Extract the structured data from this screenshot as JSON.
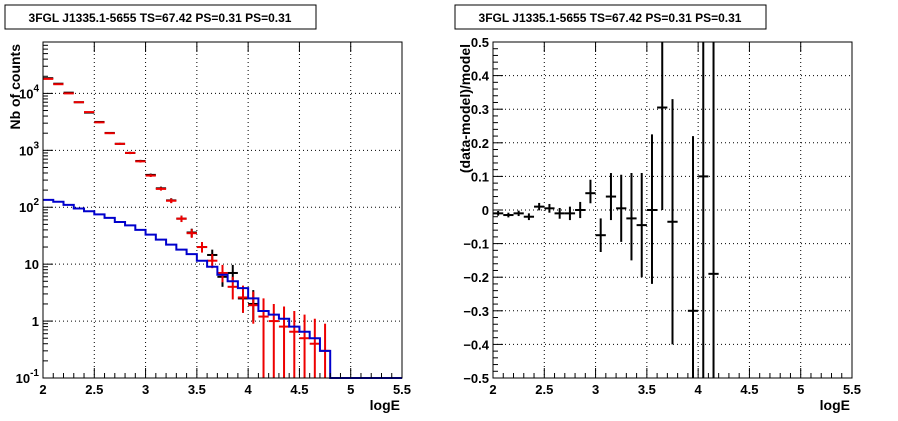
{
  "panels": {
    "left": {
      "title": "3FGL J1335.1-5655 TS=67.42 PS=0.31 PS=0.31",
      "xlabel": "logE",
      "ylabel": "Nb of counts"
    },
    "right": {
      "title": "3FGL J1335.1-5655 TS=67.42 PS=0.31 PS=0.31",
      "xlabel": "logE",
      "ylabel": "(data-model)/model"
    }
  },
  "chart_data": [
    {
      "type": "scatter",
      "title": "3FGL J1335.1-5655 TS=67.42 PS=0.31 PS=0.31",
      "xlabel": "logE",
      "ylabel": "Nb of counts",
      "xlim": [
        2,
        5.5
      ],
      "ylim": [
        0.1,
        80000
      ],
      "yscale": "log",
      "grid": true,
      "xticks": [
        {
          "v": 2,
          "label": "2"
        },
        {
          "v": 2.5,
          "label": "2.5"
        },
        {
          "v": 3,
          "label": "3"
        },
        {
          "v": 3.5,
          "label": "3.5"
        },
        {
          "v": 4,
          "label": "4"
        },
        {
          "v": 4.5,
          "label": "4.5"
        },
        {
          "v": 5,
          "label": "5"
        },
        {
          "v": 5.5,
          "label": "5.5"
        }
      ],
      "yticks": [
        {
          "v": 0.1,
          "label": "10",
          "sup": "-1"
        },
        {
          "v": 1,
          "label": "1",
          "sup": ""
        },
        {
          "v": 10,
          "label": "10",
          "sup": ""
        },
        {
          "v": 100,
          "label": "10",
          "sup": "2"
        },
        {
          "v": 1000,
          "label": "10",
          "sup": "3"
        },
        {
          "v": 10000,
          "label": "10",
          "sup": "4"
        }
      ],
      "series": [
        {
          "color": "#000000",
          "points": [
            {
              "x": 2.05,
              "y": 18500,
              "ylo": 18300,
              "yhi": 18700
            },
            {
              "x": 2.15,
              "y": 14800,
              "ylo": 14600,
              "yhi": 15000
            },
            {
              "x": 2.25,
              "y": 10300,
              "ylo": 10100,
              "yhi": 10500
            },
            {
              "x": 2.35,
              "y": 7000,
              "ylo": 6850,
              "yhi": 7150
            },
            {
              "x": 2.45,
              "y": 4600,
              "ylo": 4500,
              "yhi": 4700
            },
            {
              "x": 2.55,
              "y": 3150,
              "ylo": 3050,
              "yhi": 3250
            },
            {
              "x": 2.65,
              "y": 2020,
              "ylo": 1950,
              "yhi": 2090
            },
            {
              "x": 2.75,
              "y": 1300,
              "ylo": 1250,
              "yhi": 1350
            },
            {
              "x": 2.85,
              "y": 900,
              "ylo": 860,
              "yhi": 940
            },
            {
              "x": 2.95,
              "y": 650,
              "ylo": 620,
              "yhi": 680
            },
            {
              "x": 3.05,
              "y": 370,
              "ylo": 350,
              "yhi": 390
            },
            {
              "x": 3.15,
              "y": 215,
              "ylo": 200,
              "yhi": 230
            },
            {
              "x": 3.25,
              "y": 132,
              "ylo": 120,
              "yhi": 144
            },
            {
              "x": 3.35,
              "y": 63,
              "ylo": 55,
              "yhi": 71
            },
            {
              "x": 3.45,
              "y": 36,
              "ylo": 30,
              "yhi": 42
            },
            {
              "x": 3.55,
              "y": 20,
              "ylo": 16,
              "yhi": 24
            },
            {
              "x": 3.65,
              "y": 14.5,
              "ylo": 11,
              "yhi": 18
            },
            {
              "x": 3.75,
              "y": 6,
              "ylo": 4,
              "yhi": 8.5
            },
            {
              "x": 3.85,
              "y": 7,
              "ylo": 4.8,
              "yhi": 9.7
            },
            {
              "x": 3.95,
              "y": 2.5,
              "ylo": 1.4,
              "yhi": 4.1
            },
            {
              "x": 4.05,
              "y": 2,
              "ylo": 1,
              "yhi": 3.5
            }
          ]
        },
        {
          "color": "#ee0000",
          "points": [
            {
              "x": 2.05,
              "y": 18000,
              "ylo": 17800,
              "yhi": 18200
            },
            {
              "x": 2.15,
              "y": 14500,
              "ylo": 14300,
              "yhi": 14700
            },
            {
              "x": 2.25,
              "y": 10000,
              "ylo": 9800,
              "yhi": 10200
            },
            {
              "x": 2.35,
              "y": 7000,
              "ylo": 6850,
              "yhi": 7150
            },
            {
              "x": 2.45,
              "y": 4700,
              "ylo": 4600,
              "yhi": 4800
            },
            {
              "x": 2.55,
              "y": 3100,
              "ylo": 3000,
              "yhi": 3200
            },
            {
              "x": 2.65,
              "y": 2000,
              "ylo": 1930,
              "yhi": 2070
            },
            {
              "x": 2.75,
              "y": 1300,
              "ylo": 1250,
              "yhi": 1350
            },
            {
              "x": 2.85,
              "y": 900,
              "ylo": 860,
              "yhi": 940
            },
            {
              "x": 2.95,
              "y": 640,
              "ylo": 610,
              "yhi": 670
            },
            {
              "x": 3.05,
              "y": 360,
              "ylo": 340,
              "yhi": 380
            },
            {
              "x": 3.15,
              "y": 210,
              "ylo": 196,
              "yhi": 224
            },
            {
              "x": 3.25,
              "y": 130,
              "ylo": 118,
              "yhi": 142
            },
            {
              "x": 3.35,
              "y": 63,
              "ylo": 55,
              "yhi": 71
            },
            {
              "x": 3.45,
              "y": 35,
              "ylo": 29,
              "yhi": 41
            },
            {
              "x": 3.55,
              "y": 20,
              "ylo": 16,
              "yhi": 24.5
            },
            {
              "x": 3.65,
              "y": 11.5,
              "ylo": 8.5,
              "yhi": 15
            },
            {
              "x": 3.75,
              "y": 7,
              "ylo": 4.8,
              "yhi": 9.7
            },
            {
              "x": 3.85,
              "y": 4,
              "ylo": 2.4,
              "yhi": 6
            },
            {
              "x": 3.95,
              "y": 2.6,
              "ylo": 1.4,
              "yhi": 4.2
            },
            {
              "x": 4.05,
              "y": 1.9,
              "ylo": 0.9,
              "yhi": 3.3
            },
            {
              "x": 4.15,
              "y": 1.2,
              "ylo": 0.1,
              "yhi": 2.5
            },
            {
              "x": 4.25,
              "y": 1.0,
              "ylo": 0.1,
              "yhi": 2.0
            },
            {
              "x": 4.35,
              "y": 0.8,
              "ylo": 0.1,
              "yhi": 1.8
            },
            {
              "x": 4.45,
              "y": 0.65,
              "ylo": 0.1,
              "yhi": 1.5
            },
            {
              "x": 4.55,
              "y": 0.5,
              "ylo": 0.1,
              "yhi": 1.3
            },
            {
              "x": 4.65,
              "y": 0.4,
              "ylo": 0.1,
              "yhi": 1.1
            },
            {
              "x": 4.75,
              "y": 0.3,
              "ylo": 0.1,
              "yhi": 0.9
            }
          ]
        },
        {
          "type": "step",
          "color": "#0000cc",
          "edges": [
            2,
            2.1,
            2.2,
            2.3,
            2.4,
            2.5,
            2.6,
            2.7,
            2.8,
            2.9,
            3,
            3.1,
            3.2,
            3.3,
            3.4,
            3.5,
            3.6,
            3.7,
            3.8,
            3.9,
            4,
            4.1,
            4.2,
            4.3,
            4.4,
            4.5,
            4.6,
            4.7,
            4.8,
            4.9,
            5,
            5.1,
            5.2,
            5.3,
            5.4,
            5.5
          ],
          "values": [
            135,
            125,
            110,
            95,
            85,
            75,
            65,
            55,
            48,
            40,
            33,
            27,
            22,
            18,
            15,
            11.5,
            9,
            6.5,
            5.0,
            3.8,
            2.5,
            1.5,
            1.3,
            1.1,
            0.8,
            0.65,
            0.5,
            0.3,
            0.1,
            0.1,
            0.1,
            0.1,
            0.1,
            0.1,
            0.1
          ]
        }
      ]
    },
    {
      "type": "scatter",
      "title": "3FGL J1335.1-5655 TS=67.42 PS=0.31 PS=0.31",
      "xlabel": "logE",
      "ylabel": "(data-model)/model",
      "xlim": [
        2,
        5.5
      ],
      "ylim": [
        -0.5,
        0.5
      ],
      "yscale": "linear",
      "grid": true,
      "xticks": [
        {
          "v": 2,
          "label": "2"
        },
        {
          "v": 2.5,
          "label": "2.5"
        },
        {
          "v": 3,
          "label": "3"
        },
        {
          "v": 3.5,
          "label": "3.5"
        },
        {
          "v": 4,
          "label": "4"
        },
        {
          "v": 4.5,
          "label": "4.5"
        },
        {
          "v": 5,
          "label": "5"
        },
        {
          "v": 5.5,
          "label": "5.5"
        }
      ],
      "yticks": [
        {
          "v": -0.5,
          "label": "−0.5"
        },
        {
          "v": -0.4,
          "label": "−0.4"
        },
        {
          "v": -0.3,
          "label": "−0.3"
        },
        {
          "v": -0.2,
          "label": "−0.2"
        },
        {
          "v": -0.1,
          "label": "−0.1"
        },
        {
          "v": 0,
          "label": "0"
        },
        {
          "v": 0.1,
          "label": "0.1"
        },
        {
          "v": 0.2,
          "label": "0.2"
        },
        {
          "v": 0.3,
          "label": "0.3"
        },
        {
          "v": 0.4,
          "label": "0.4"
        },
        {
          "v": 0.5,
          "label": "0.5"
        }
      ],
      "series": [
        {
          "color": "#000000",
          "points": [
            {
              "x": 2.05,
              "y": -0.01,
              "ylo": -0.017,
              "yhi": -0.003
            },
            {
              "x": 2.15,
              "y": -0.015,
              "ylo": -0.022,
              "yhi": -0.008
            },
            {
              "x": 2.25,
              "y": -0.01,
              "ylo": -0.018,
              "yhi": -0.002
            },
            {
              "x": 2.35,
              "y": -0.02,
              "ylo": -0.03,
              "yhi": -0.01
            },
            {
              "x": 2.45,
              "y": 0.01,
              "ylo": -0.001,
              "yhi": 0.021
            },
            {
              "x": 2.55,
              "y": 0.005,
              "ylo": -0.008,
              "yhi": 0.018
            },
            {
              "x": 2.65,
              "y": -0.01,
              "ylo": -0.026,
              "yhi": 0.006
            },
            {
              "x": 2.75,
              "y": -0.01,
              "ylo": -0.03,
              "yhi": 0.01
            },
            {
              "x": 2.85,
              "y": 0.0,
              "ylo": -0.024,
              "yhi": 0.024
            },
            {
              "x": 2.95,
              "y": 0.05,
              "ylo": 0.02,
              "yhi": 0.09
            },
            {
              "x": 3.05,
              "y": -0.075,
              "ylo": -0.125,
              "yhi": -0.025
            },
            {
              "x": 3.15,
              "y": 0.04,
              "ylo": -0.03,
              "yhi": 0.11
            },
            {
              "x": 3.25,
              "y": 0.005,
              "ylo": -0.095,
              "yhi": 0.105
            },
            {
              "x": 3.35,
              "y": -0.025,
              "ylo": -0.15,
              "yhi": 0.11
            },
            {
              "x": 3.45,
              "y": -0.045,
              "ylo": -0.2,
              "yhi": 0.11
            },
            {
              "x": 3.55,
              "y": 0.0,
              "ylo": -0.22,
              "yhi": 0.225
            },
            {
              "x": 3.65,
              "y": 0.305,
              "ylo": 0.0,
              "yhi": 0.5
            },
            {
              "x": 3.75,
              "y": -0.035,
              "ylo": -0.4,
              "yhi": 0.33
            },
            {
              "x": 3.95,
              "y": -0.3,
              "ylo": -0.5,
              "yhi": 0.22
            },
            {
              "x": 4.05,
              "y": 0.1,
              "ylo": -0.5,
              "yhi": 0.5
            },
            {
              "x": 4.15,
              "y": -0.19,
              "ylo": -0.5,
              "yhi": 0.5
            }
          ]
        }
      ]
    }
  ]
}
